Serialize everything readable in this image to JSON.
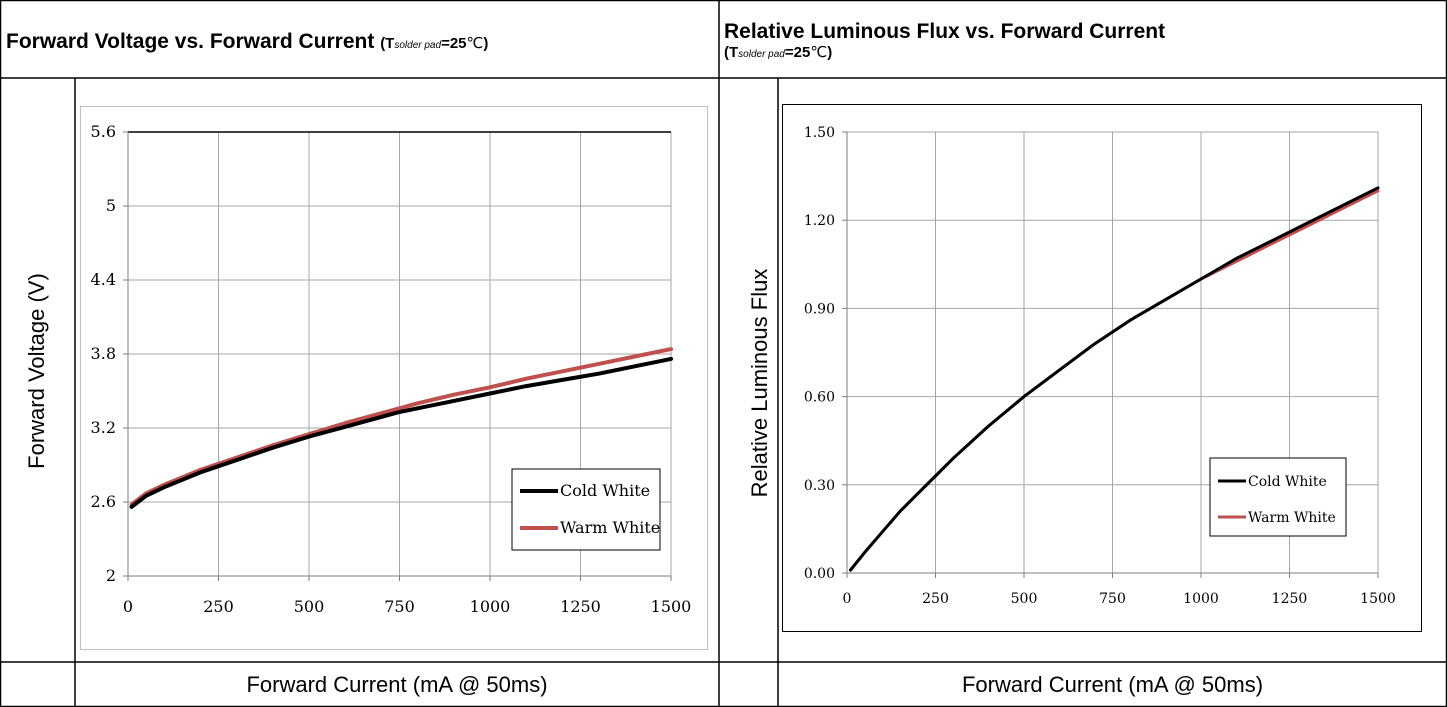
{
  "panels": [
    {
      "title_main": "Forward Voltage vs. Forward Current",
      "cond_prefix": "(T",
      "cond_sub": "solder pad",
      "cond_value": "=25",
      "cond_unit": "℃",
      "cond_close": ")",
      "ylabel": "Forward Voltage (V)",
      "xlabel": "Forward Current (mA @ 50ms)"
    },
    {
      "title_main": "Relative Luminous Flux vs. Forward Current",
      "cond_prefix": "(T",
      "cond_sub": "solder pad",
      "cond_value": "=25",
      "cond_unit": "℃",
      "cond_close": ")",
      "ylabel": "Relative Luminous Flux",
      "xlabel": "Forward Current (mA @ 50ms)"
    }
  ],
  "colors": {
    "cold": "#000000",
    "warm": "#c0504d",
    "grid": "#a6a6a6"
  },
  "chart_data": [
    {
      "type": "line",
      "title": "Forward Voltage vs. Forward Current",
      "xlabel": "Forward Current (mA @ 50ms)",
      "ylabel": "Forward Voltage (V)",
      "xlim": [
        0,
        1500
      ],
      "ylim": [
        2,
        5.6
      ],
      "xticks": [
        0,
        250,
        500,
        750,
        1000,
        1250,
        1500
      ],
      "yticks": [
        2,
        2.6,
        3.2,
        3.8,
        4.4,
        5,
        5.6
      ],
      "ytick_labels": [
        "2",
        "2.6",
        "3.2",
        "3.8",
        "4.4",
        "5",
        "5.6"
      ],
      "grid": true,
      "legend_position": "lower-right",
      "series": [
        {
          "name": "Cold White",
          "x": [
            10,
            50,
            100,
            150,
            200,
            250,
            300,
            400,
            500,
            600,
            700,
            750,
            800,
            900,
            1000,
            1100,
            1200,
            1300,
            1400,
            1500
          ],
          "y": [
            2.56,
            2.65,
            2.72,
            2.78,
            2.84,
            2.89,
            2.94,
            3.04,
            3.13,
            3.21,
            3.29,
            3.33,
            3.36,
            3.42,
            3.48,
            3.54,
            3.59,
            3.64,
            3.7,
            3.76
          ]
        },
        {
          "name": "Warm White",
          "x": [
            10,
            50,
            100,
            150,
            200,
            250,
            300,
            400,
            500,
            600,
            700,
            750,
            800,
            900,
            1000,
            1100,
            1200,
            1300,
            1400,
            1500
          ],
          "y": [
            2.58,
            2.67,
            2.74,
            2.8,
            2.86,
            2.91,
            2.96,
            3.06,
            3.15,
            3.24,
            3.32,
            3.36,
            3.4,
            3.47,
            3.53,
            3.6,
            3.66,
            3.72,
            3.78,
            3.84
          ]
        }
      ]
    },
    {
      "type": "line",
      "title": "Relative Luminous Flux vs. Forward Current",
      "xlabel": "Forward Current (mA @ 50ms)",
      "ylabel": "Relative Luminous Flux",
      "xlim": [
        0,
        1500
      ],
      "ylim": [
        0,
        1.5
      ],
      "xticks": [
        0,
        250,
        500,
        750,
        1000,
        1250,
        1500
      ],
      "yticks": [
        0,
        0.3,
        0.6,
        0.9,
        1.2,
        1.5
      ],
      "ytick_labels": [
        "0.00",
        "0.30",
        "0.60",
        "0.90",
        "1.20",
        "1.50"
      ],
      "grid": true,
      "legend_position": "lower-right",
      "series": [
        {
          "name": "Cold White",
          "x": [
            10,
            50,
            100,
            150,
            200,
            250,
            300,
            400,
            500,
            600,
            700,
            800,
            900,
            1000,
            1100,
            1200,
            1300,
            1400,
            1500
          ],
          "y": [
            0.01,
            0.07,
            0.14,
            0.21,
            0.27,
            0.33,
            0.39,
            0.5,
            0.6,
            0.69,
            0.78,
            0.86,
            0.93,
            1.0,
            1.07,
            1.13,
            1.19,
            1.25,
            1.31
          ]
        },
        {
          "name": "Warm White",
          "x": [
            10,
            50,
            100,
            150,
            200,
            250,
            300,
            400,
            500,
            600,
            700,
            800,
            900,
            1000,
            1100,
            1200,
            1300,
            1400,
            1500
          ],
          "y": [
            0.01,
            0.07,
            0.14,
            0.21,
            0.27,
            0.33,
            0.39,
            0.5,
            0.6,
            0.69,
            0.78,
            0.86,
            0.93,
            1.0,
            1.06,
            1.12,
            1.18,
            1.24,
            1.3
          ]
        }
      ]
    }
  ]
}
